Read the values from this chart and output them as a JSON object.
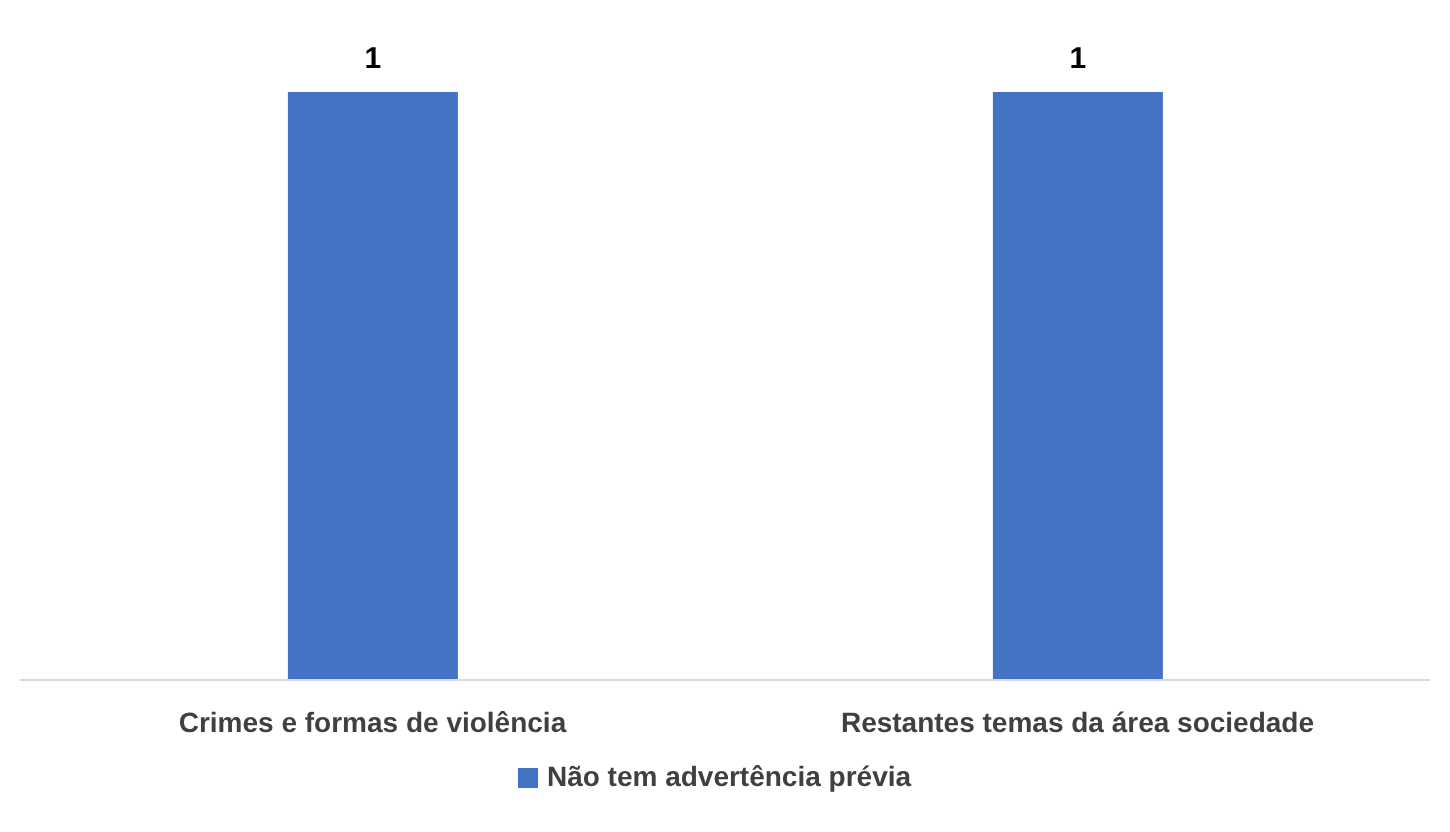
{
  "chart_data": {
    "type": "bar",
    "categories": [
      "Crimes e formas de violência",
      "Restantes temas da área sociedade"
    ],
    "series": [
      {
        "name": "Não tem advertência prévia",
        "color": "#4472c4",
        "values": [
          1,
          1
        ]
      }
    ],
    "data_labels": true,
    "legend": "bottom",
    "grid": false
  }
}
